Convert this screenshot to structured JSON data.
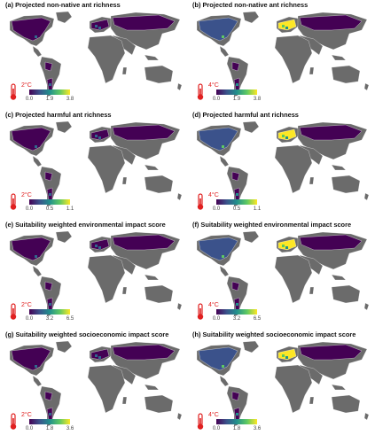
{
  "panels": [
    {
      "title": "(a) Projected non-native ant richness",
      "temp": "2°C",
      "ticks": [
        "0.0",
        "1.9",
        "3.8"
      ],
      "level": 0
    },
    {
      "title": "(b) Projected non-native ant richness",
      "temp": "4°C",
      "ticks": [
        "0.0",
        "1.9",
        "3.8"
      ],
      "level": 1
    },
    {
      "title": "(c) Projected harmful ant richness",
      "temp": "2°C",
      "ticks": [
        "0.0",
        "0.5",
        "1.1"
      ],
      "level": 0
    },
    {
      "title": "(d) Projected harmful ant richness",
      "temp": "4°C",
      "ticks": [
        "0.0",
        "0.5",
        "1.1"
      ],
      "level": 1
    },
    {
      "title": "(e) Suitability weighted environmental impact score",
      "temp": "2°C",
      "ticks": [
        "0.0",
        "3.2",
        "6.5"
      ],
      "level": 0
    },
    {
      "title": "(f) Suitability weighted environmental impact score",
      "temp": "4°C",
      "ticks": [
        "0.0",
        "3.2",
        "6.5"
      ],
      "level": 1
    },
    {
      "title": "(g) Suitability weighted socioeconomic impact score",
      "temp": "2°C",
      "ticks": [
        "0.0",
        "1.8",
        "3.6"
      ],
      "level": 0
    },
    {
      "title": "(h) Suitability weighted socioeconomic impact score",
      "temp": "4°C",
      "ticks": [
        "0.0",
        "1.8",
        "3.6"
      ],
      "level": 1
    }
  ],
  "colors": {
    "land": "#6b6b6b",
    "ocean": "#ffffff",
    "low": "#440154",
    "mid": "#21908d",
    "high": "#fde725",
    "thermometer": "#e02020"
  },
  "colorbar": "viridis",
  "icons": {
    "thermometer": "thermometer-icon"
  }
}
